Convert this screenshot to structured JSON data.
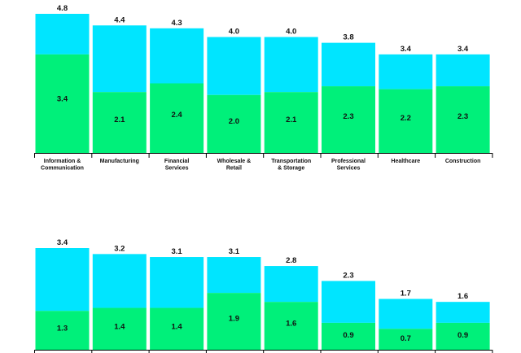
{
  "colors": {
    "top": "#00E5FF",
    "bottom": "#00F07A",
    "axis": "#000000"
  },
  "chart_data": [
    {
      "type": "bar",
      "stacked": true,
      "categories": [
        "Information & Communication",
        "Manufacturing",
        "Financial Services",
        "Wholesale & Retail",
        "Transportation & Storage",
        "Professional Services",
        "Healthcare",
        "Construction"
      ],
      "totals": [
        4.8,
        4.4,
        4.3,
        4.0,
        4.0,
        3.8,
        3.4,
        3.4
      ],
      "lower_values": [
        3.4,
        2.1,
        2.4,
        2.0,
        2.1,
        2.3,
        2.2,
        2.3
      ],
      "total_labels": [
        "4.8",
        "4.4",
        "4.3",
        "4.0",
        "4.0",
        "3.8",
        "3.4",
        "3.4"
      ],
      "lower_labels": [
        "3.4",
        "2.1",
        "2.4",
        "2.0",
        "2.1",
        "2.3",
        "2.2",
        "2.3"
      ],
      "ylim": [
        0,
        4.8
      ]
    },
    {
      "type": "bar",
      "stacked": true,
      "categories": [
        "",
        "",
        "",
        "",
        "",
        "",
        "",
        ""
      ],
      "totals": [
        3.4,
        3.2,
        3.1,
        3.1,
        2.8,
        2.3,
        1.7,
        1.6
      ],
      "lower_values": [
        1.3,
        1.4,
        1.4,
        1.9,
        1.6,
        0.9,
        0.7,
        0.9
      ],
      "total_labels": [
        "3.4",
        "3.2",
        "3.1",
        "3.1",
        "2.8",
        "2.3",
        "1.7",
        "1.6"
      ],
      "lower_labels": [
        "1.3",
        "1.4",
        "1.4",
        "1.9",
        "1.6",
        "0.9",
        "0.7",
        "0.9"
      ],
      "ylim": [
        0,
        3.4
      ]
    }
  ]
}
